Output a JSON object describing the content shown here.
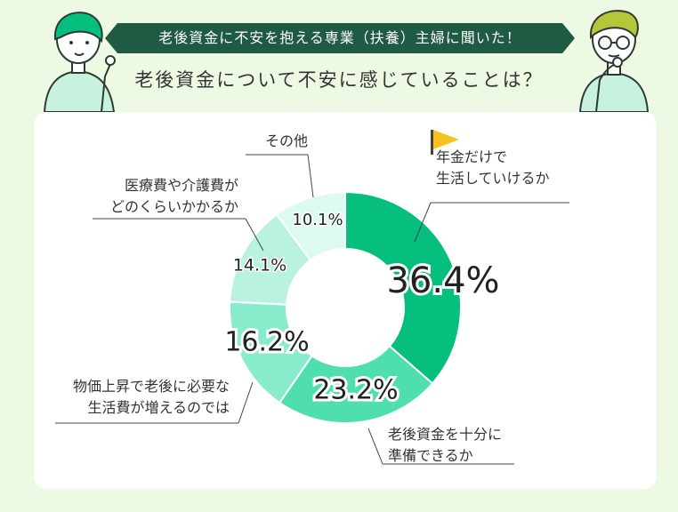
{
  "header": {
    "banner": "老後資金に不安を抱える専業（扶養）主婦に聞いた！",
    "question": "老後資金について不安に感じていることは？"
  },
  "colors": {
    "background": "#eef9e3",
    "banner": "#1f5a43",
    "slices": [
      "#06bf7d",
      "#4fdfae",
      "#88eccc",
      "#b9f3df",
      "#dcfaf0"
    ]
  },
  "chart_data": {
    "type": "pie",
    "style": "donut",
    "title": "",
    "slices": [
      {
        "label_lines": [
          "年金だけで",
          "生活していけるか"
        ],
        "value": 36.4,
        "display": "36.4%",
        "color": "#06bf7d"
      },
      {
        "label_lines": [
          "老後資金を十分に",
          "準備できるか"
        ],
        "value": 23.2,
        "display": "23.2%",
        "color": "#4fdfae"
      },
      {
        "label_lines": [
          "物価上昇で老後に必要な",
          "生活費が増えるのでは"
        ],
        "value": 16.2,
        "display": "16.2%",
        "color": "#88eccc"
      },
      {
        "label_lines": [
          "医療費や介護費が",
          "どのくらいかかるか"
        ],
        "value": 14.1,
        "display": "14.1%",
        "color": "#b9f3df"
      },
      {
        "label_lines": [
          "その他"
        ],
        "value": 10.1,
        "display": "10.1%",
        "color": "#dcfaf0"
      }
    ],
    "highlight_icon": "flag-icon",
    "legend": "none"
  }
}
